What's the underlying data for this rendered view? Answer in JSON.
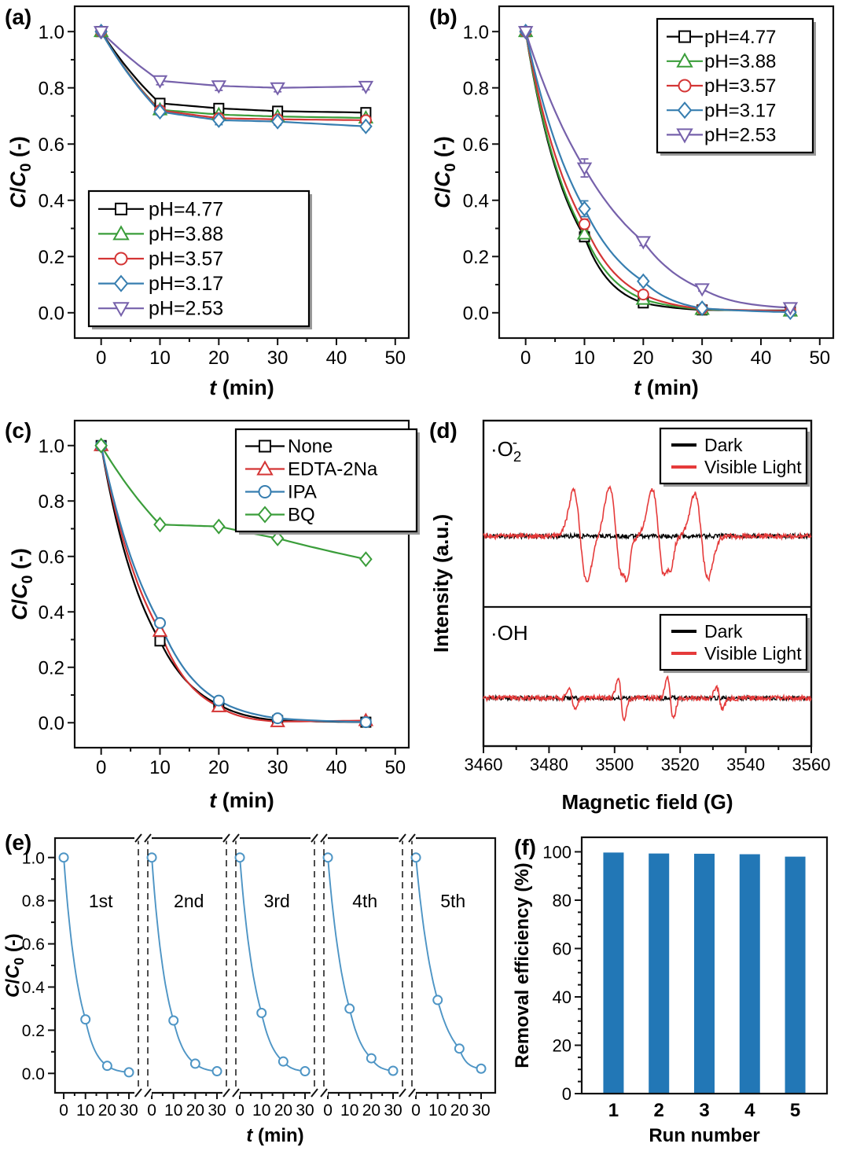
{
  "panels": {
    "a": {
      "tag": "(a)"
    },
    "b": {
      "tag": "(b)"
    },
    "c": {
      "tag": "(c)"
    },
    "d": {
      "tag": "(d)"
    },
    "e": {
      "tag": "(e)"
    },
    "f": {
      "tag": "(f)"
    }
  },
  "chart_data": [
    {
      "id": "a",
      "type": "line",
      "title": "",
      "xlabel": [
        [
          "t",
          "bi"
        ],
        [
          " (min)",
          "b"
        ]
      ],
      "ylabel": [
        [
          "C",
          "bi"
        ],
        [
          "/",
          "b"
        ],
        [
          "C",
          "bi"
        ],
        [
          "0",
          "bsub"
        ],
        [
          " (-)",
          "b"
        ]
      ],
      "xlim": [
        -4.5,
        52.3
      ],
      "ylim": [
        -0.09,
        1.09
      ],
      "xmajor": [
        [
          0,
          "0"
        ],
        [
          10,
          "10"
        ],
        [
          20,
          "20"
        ],
        [
          30,
          "30"
        ],
        [
          40,
          "40"
        ],
        [
          50,
          "50"
        ]
      ],
      "xminor": [
        5,
        15,
        25,
        35,
        45
      ],
      "ymajor": [
        [
          0.0,
          "0.0"
        ],
        [
          0.2,
          "0.2"
        ],
        [
          0.4,
          "0.4"
        ],
        [
          0.6,
          "0.6"
        ],
        [
          0.8,
          "0.8"
        ],
        [
          1.0,
          "1.0"
        ]
      ],
      "yminor": [
        0.1,
        0.3,
        0.5,
        0.7,
        0.9
      ],
      "x": [
        0,
        10,
        20,
        30,
        45
      ],
      "legend_position": "lower-left",
      "series": [
        {
          "name": "pH=4.77",
          "color": "#000000",
          "marker": "square",
          "values": [
            1.0,
            0.745,
            0.727,
            0.717,
            0.712
          ],
          "yerr": [
            0,
            0.012,
            0.014,
            0.012,
            0.01
          ]
        },
        {
          "name": "pH=3.88",
          "color": "#3a9d3a",
          "marker": "triangle-up",
          "values": [
            1.0,
            0.722,
            0.705,
            0.698,
            0.693
          ],
          "yerr": [
            0,
            0.012,
            0.012,
            0.01,
            0.01
          ]
        },
        {
          "name": "pH=3.57",
          "color": "#d43535",
          "marker": "circle",
          "values": [
            1.0,
            0.72,
            0.692,
            0.688,
            0.685
          ],
          "yerr": [
            0,
            0.012,
            0.014,
            0.01,
            0.01
          ]
        },
        {
          "name": "pH=3.17",
          "color": "#377eb0",
          "marker": "diamond",
          "values": [
            1.0,
            0.715,
            0.685,
            0.68,
            0.663
          ],
          "yerr": [
            0,
            0.012,
            0.016,
            0.012,
            0.012
          ]
        },
        {
          "name": "pH=2.53",
          "color": "#7661ab",
          "marker": "triangle-down",
          "values": [
            1.0,
            0.825,
            0.807,
            0.8,
            0.805
          ],
          "yerr": [
            0,
            0.014,
            0.016,
            0.014,
            0.012
          ]
        }
      ]
    },
    {
      "id": "b",
      "type": "line",
      "title": "",
      "xlabel": [
        [
          "t",
          "bi"
        ],
        [
          " (min)",
          "b"
        ]
      ],
      "ylabel": [
        [
          "C",
          "bi"
        ],
        [
          "/",
          "b"
        ],
        [
          "C",
          "bi"
        ],
        [
          "0",
          "bsub"
        ],
        [
          " (-)",
          "b"
        ]
      ],
      "xlim": [
        -4.5,
        52.3
      ],
      "ylim": [
        -0.09,
        1.09
      ],
      "xmajor": [
        [
          0,
          "0"
        ],
        [
          10,
          "10"
        ],
        [
          20,
          "20"
        ],
        [
          30,
          "30"
        ],
        [
          40,
          "40"
        ],
        [
          50,
          "50"
        ]
      ],
      "xminor": [
        5,
        15,
        25,
        35,
        45
      ],
      "ymajor": [
        [
          0.0,
          "0.0"
        ],
        [
          0.2,
          "0.2"
        ],
        [
          0.4,
          "0.4"
        ],
        [
          0.6,
          "0.6"
        ],
        [
          0.8,
          "0.8"
        ],
        [
          1.0,
          "1.0"
        ]
      ],
      "yminor": [
        0.1,
        0.3,
        0.5,
        0.7,
        0.9
      ],
      "x": [
        0,
        10,
        20,
        30,
        45
      ],
      "legend_position": "upper-right",
      "series": [
        {
          "name": "pH=4.77",
          "color": "#000000",
          "marker": "square",
          "values": [
            1.0,
            0.27,
            0.035,
            0.01,
            0.008
          ],
          "yerr": [
            0,
            0.015,
            0.008,
            0.004,
            0.004
          ]
        },
        {
          "name": "pH=3.88",
          "color": "#3a9d3a",
          "marker": "triangle-up",
          "values": [
            1.0,
            0.28,
            0.048,
            0.012,
            0.006
          ],
          "yerr": [
            0,
            0.012,
            0.006,
            0.004,
            0.004
          ]
        },
        {
          "name": "pH=3.57",
          "color": "#d43535",
          "marker": "circle",
          "values": [
            1.0,
            0.315,
            0.065,
            0.014,
            0.006
          ],
          "yerr": [
            0,
            0.018,
            0.008,
            0.004,
            0.004
          ]
        },
        {
          "name": "pH=3.17",
          "color": "#377eb0",
          "marker": "diamond",
          "values": [
            1.0,
            0.37,
            0.112,
            0.016,
            0.002
          ],
          "yerr": [
            0,
            0.028,
            0.012,
            0.006,
            0.004
          ]
        },
        {
          "name": "pH=2.53",
          "color": "#7661ab",
          "marker": "triangle-down",
          "values": [
            1.0,
            0.515,
            0.253,
            0.085,
            0.018
          ],
          "yerr": [
            0,
            0.032,
            0.014,
            0.008,
            0.006
          ]
        }
      ]
    },
    {
      "id": "c",
      "type": "line",
      "title": "",
      "xlabel": [
        [
          "t",
          "bi"
        ],
        [
          " (min)",
          "b"
        ]
      ],
      "ylabel": [
        [
          "C",
          "bi"
        ],
        [
          "/",
          "b"
        ],
        [
          "C",
          "bi"
        ],
        [
          "0",
          "bsub"
        ],
        [
          " (-)",
          "b"
        ]
      ],
      "xlim": [
        -4.5,
        52.3
      ],
      "ylim": [
        -0.09,
        1.09
      ],
      "xmajor": [
        [
          0,
          "0"
        ],
        [
          10,
          "10"
        ],
        [
          20,
          "20"
        ],
        [
          30,
          "30"
        ],
        [
          40,
          "40"
        ],
        [
          50,
          "50"
        ]
      ],
      "xminor": [
        5,
        15,
        25,
        35,
        45
      ],
      "ymajor": [
        [
          0.0,
          "0.0"
        ],
        [
          0.2,
          "0.2"
        ],
        [
          0.4,
          "0.4"
        ],
        [
          0.6,
          "0.6"
        ],
        [
          0.8,
          "0.8"
        ],
        [
          1.0,
          "1.0"
        ]
      ],
      "yminor": [
        0.1,
        0.3,
        0.5,
        0.7,
        0.9
      ],
      "x": [
        0,
        10,
        20,
        30,
        45
      ],
      "legend_position": "upper-right",
      "series": [
        {
          "name": "None",
          "color": "#000000",
          "marker": "square",
          "values": [
            1.0,
            0.295,
            0.065,
            0.008,
            0.002
          ],
          "yerr": [
            0,
            0,
            0,
            0,
            0
          ]
        },
        {
          "name": "EDTA-2Na",
          "color": "#d43535",
          "marker": "triangle-up",
          "values": [
            1.0,
            0.33,
            0.058,
            0.004,
            0.008
          ],
          "yerr": [
            0,
            0,
            0,
            0,
            0
          ]
        },
        {
          "name": "IPA",
          "color": "#377eb0",
          "marker": "circle",
          "values": [
            1.0,
            0.36,
            0.08,
            0.016,
            0.002
          ],
          "yerr": [
            0,
            0,
            0,
            0,
            0
          ]
        },
        {
          "name": "BQ",
          "color": "#3a9d3a",
          "marker": "diamond",
          "values": [
            1.0,
            0.715,
            0.708,
            0.665,
            0.59
          ],
          "yerr": [
            0,
            0,
            0,
            0,
            0
          ]
        }
      ]
    },
    {
      "id": "d",
      "type": "line",
      "variant": "epr-spectra",
      "title": "",
      "xlabel": [
        [
          "Magnetic field (G)",
          "b"
        ]
      ],
      "ylabel": [
        [
          "Intensity (a.u.)",
          "b"
        ]
      ],
      "xlim": [
        3460,
        3560
      ],
      "xmajor": [
        [
          3460,
          "3460"
        ],
        [
          3480,
          "3480"
        ],
        [
          3500,
          "3500"
        ],
        [
          3520,
          "3520"
        ],
        [
          3540,
          "3540"
        ],
        [
          3560,
          "3560"
        ]
      ],
      "xminor": [
        3470,
        3490,
        3510,
        3530,
        3550
      ],
      "colors": {
        "dark": "#000000",
        "visible_light": "#e53a3a"
      },
      "subpanels": [
        {
          "label": [
            [
              "·O",
              "r"
            ],
            [
              "2",
              "sub"
            ],
            [
              "-",
              "supstack"
            ]
          ],
          "legend": [
            "Dark",
            "Visible Light"
          ],
          "peaks": {
            "centers": [
              3489.5,
              3500.5,
              3513.5,
              3526.5
            ],
            "amps": [
              58,
              63,
              60,
              54
            ],
            "width": 2.0
          },
          "minor_peaks": {
            "centers": [
              3503.3,
              3516.6
            ],
            "amps": [
              16,
              14
            ],
            "width": 0.8
          },
          "noise": 3.2,
          "seed_dark": 11,
          "seed_light": 12
        },
        {
          "label": [
            [
              "·OH",
              "r"
            ]
          ],
          "legend": [
            "Dark",
            "Visible Light"
          ],
          "peaks": {
            "centers": [
              3487,
              3502,
              3517,
              3532
            ],
            "amps": [
              13,
              27,
              26,
              15
            ],
            "width": 0.9
          },
          "minor_peaks": {
            "centers": [],
            "amps": [],
            "width": 1
          },
          "noise": 3.2,
          "seed_dark": 21,
          "seed_light": 22
        }
      ]
    },
    {
      "id": "e",
      "type": "line",
      "variant": "cycling-runs",
      "title": "",
      "xlabel": [
        [
          "t",
          "bi"
        ],
        [
          " (min)",
          "b"
        ]
      ],
      "ylabel": [
        [
          "C",
          "bi"
        ],
        [
          "/",
          "b"
        ],
        [
          "C",
          "bi"
        ],
        [
          "0",
          "bsub"
        ],
        [
          " (-)",
          "b"
        ]
      ],
      "ylim": [
        -0.09,
        1.09
      ],
      "ymajor": [
        [
          0.0,
          "0.0"
        ],
        [
          0.2,
          "0.2"
        ],
        [
          0.4,
          "0.4"
        ],
        [
          0.6,
          "0.6"
        ],
        [
          0.8,
          "0.8"
        ],
        [
          1.0,
          "1.0"
        ]
      ],
      "yminor": [
        0.1,
        0.3,
        0.5,
        0.7,
        0.9
      ],
      "seg_xmajor": [
        [
          0,
          "0"
        ],
        [
          10,
          "10"
        ],
        [
          20,
          "20"
        ],
        [
          30,
          "30"
        ]
      ],
      "seg_xminor": [
        5,
        15,
        25
      ],
      "color": "#4e95c5",
      "marker": "circle",
      "cycles": [
        {
          "label": "1st",
          "x": [
            0,
            10,
            20,
            30
          ],
          "y": [
            1.0,
            0.25,
            0.035,
            0.005
          ]
        },
        {
          "label": "2nd",
          "x": [
            0,
            10,
            20,
            30
          ],
          "y": [
            1.0,
            0.245,
            0.045,
            0.01
          ]
        },
        {
          "label": "3rd",
          "x": [
            0,
            10,
            20,
            30
          ],
          "y": [
            1.0,
            0.28,
            0.055,
            0.01
          ]
        },
        {
          "label": "4th",
          "x": [
            0,
            10,
            20,
            30
          ],
          "y": [
            1.0,
            0.3,
            0.07,
            0.012
          ]
        },
        {
          "label": "5th",
          "x": [
            0,
            10,
            20,
            30
          ],
          "y": [
            1.0,
            0.34,
            0.115,
            0.022
          ]
        }
      ]
    },
    {
      "id": "f",
      "type": "bar",
      "title": "",
      "xlabel": [
        [
          "Run number",
          "b"
        ]
      ],
      "ylabel": [
        [
          "Removal efficiency (%)",
          "b"
        ]
      ],
      "categories": [
        "1",
        "2",
        "3",
        "4",
        "5"
      ],
      "values": [
        99.7,
        99.3,
        99.2,
        99.0,
        98.0
      ],
      "bar_color": "#2277b6",
      "ylim": [
        0,
        106
      ],
      "ymajor": [
        [
          0,
          "0"
        ],
        [
          20,
          "20"
        ],
        [
          40,
          "40"
        ],
        [
          60,
          "60"
        ],
        [
          80,
          "80"
        ],
        [
          100,
          "100"
        ]
      ],
      "yminor": [
        5,
        10,
        15,
        25,
        30,
        35,
        45,
        50,
        55,
        65,
        70,
        75,
        85,
        90,
        95
      ]
    }
  ]
}
